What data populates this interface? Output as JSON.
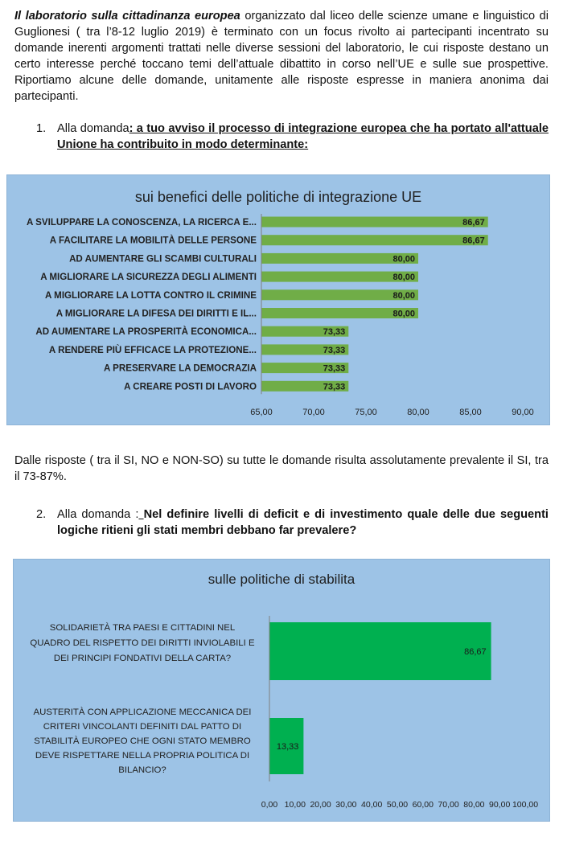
{
  "intro": {
    "lead": "Il laboratorio sulla cittadinanza europea",
    "rest": " organizzato dal liceo delle scienze umane e linguistico di Guglionesi ( tra l’8-12 luglio 2019) è terminato con un focus rivolto ai partecipanti incentrato su domande inerenti argomenti trattati nelle diverse sessioni del laboratorio, le cui risposte destano un certo interesse perché  toccano temi dell’attuale dibattito in corso nell’UE e sulle sue prospettive.  Riportiamo alcune delle domande, unitamente alle risposte espresse in maniera anonima dai partecipanti."
  },
  "question1": {
    "number": "1.",
    "prefix": "Alla domanda",
    "text": ": a tuo avviso il processo di integrazione europea che ha portato all'attuale Unione ha contribuito in modo determinante:"
  },
  "responses_note": "Dalle risposte ( tra il SI, NO e NON-SO) su tutte le domande  risulta assolutamente prevalente il SI,  tra il 73-87%.",
  "question2": {
    "number": "2.",
    "prefix": "Alla domanda :",
    "underlined_space": " ",
    "text": "Nel definire livelli di deficit e di investimento quale delle due seguenti logiche ritieni gli stati membri debbano far prevalere?"
  },
  "chart_data": [
    {
      "type": "bar",
      "orientation": "horizontal",
      "title": "sui benefici delle politiche di integrazione UE",
      "categories": [
        "A SVILUPPARE LA CONOSCENZA, LA RICERCA E...",
        "A FACILITARE LA MOBILITÀ DELLE PERSONE",
        "AD AUMENTARE GLI SCAMBI CULTURALI",
        "A MIGLIORARE LA SICUREZZA DEGLI ALIMENTI",
        "A MIGLIORARE LA LOTTA CONTRO IL CRIMINE",
        "A MIGLIORARE LA DIFESA DEI DIRITTI E IL...",
        "AD AUMENTARE LA PROSPERITÀ ECONOMICA...",
        "A RENDERE PIÙ EFFICACE LA PROTEZIONE...",
        "A PRESERVARE LA DEMOCRAZIA",
        "A CREARE POSTI DI LAVORO"
      ],
      "values": [
        86.67,
        86.67,
        80.0,
        80.0,
        80.0,
        80.0,
        73.33,
        73.33,
        73.33,
        73.33
      ],
      "value_labels": [
        "86,67",
        "86,67",
        "80,00",
        "80,00",
        "80,00",
        "80,00",
        "73,33",
        "73,33",
        "73,33",
        "73,33"
      ],
      "xlim": [
        65,
        90
      ],
      "ticks": [
        65,
        70,
        75,
        80,
        85,
        90
      ],
      "tick_labels": [
        "65,00",
        "70,00",
        "75,00",
        "80,00",
        "85,00",
        "90,00"
      ],
      "bar_color": "#70ad47",
      "background": "#9dc3e6",
      "grid": false
    },
    {
      "type": "bar",
      "orientation": "horizontal",
      "title": "sulle politiche di stabilita",
      "categories": [
        [
          "SOLIDARIETÀ TRA PAESI E CITTADINI  NEL",
          "QUADRO DEL RISPETTO DEI DIRITTI INVIOLABILI E",
          "DEI PRINCIPI FONDATIVI DELLA CARTA?"
        ],
        [
          "AUSTERITÀ CON APPLICAZIONE MECCANICA DEI",
          "CRITERI VINCOLANTI DEFINITI DAL PATTO DI",
          "STABILITÀ EUROPEO CHE OGNI STATO MEMBRO",
          "DEVE RISPETTARE NELLA PROPRIA POLITICA DI",
          "BILANCIO?"
        ]
      ],
      "values": [
        86.67,
        13.33
      ],
      "value_labels": [
        "86,67",
        "13,33"
      ],
      "xlim": [
        0,
        100
      ],
      "ticks": [
        0,
        10,
        20,
        30,
        40,
        50,
        60,
        70,
        80,
        90,
        100
      ],
      "tick_labels": [
        "0,00",
        "10,00",
        "20,00",
        "30,00",
        "40,00",
        "50,00",
        "60,00",
        "70,00",
        "80,00",
        "90,00",
        "100,00"
      ],
      "bar_color": "#00b050",
      "background": "#9dc3e6",
      "grid": false
    }
  ]
}
